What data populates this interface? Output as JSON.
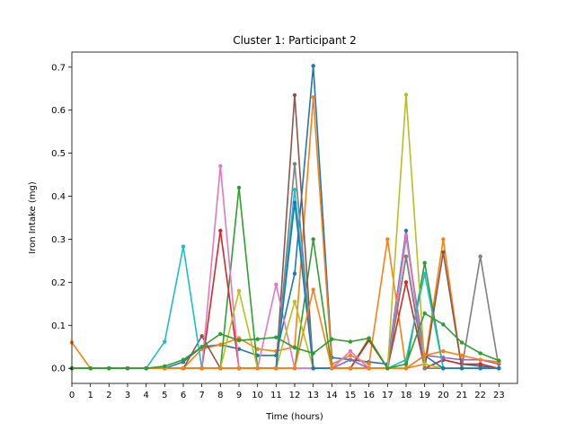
{
  "chart_data": {
    "type": "line",
    "title": "Cluster 1: Participant 2",
    "xlabel": "Time (hours)",
    "ylabel": "Iron Intake (mg)",
    "xlim": [
      0,
      24
    ],
    "ylim": [
      -0.035,
      0.735
    ],
    "x_ticks": [
      0,
      1,
      2,
      3,
      4,
      5,
      6,
      7,
      8,
      9,
      10,
      11,
      12,
      13,
      14,
      15,
      16,
      17,
      18,
      19,
      20,
      21,
      22,
      23
    ],
    "x_tick_labels": [
      "0",
      "1",
      "2",
      "3",
      "4",
      "5",
      "6",
      "7",
      "8",
      "9",
      "10",
      "11",
      "12",
      "13",
      "14",
      "15",
      "16",
      "17",
      "18",
      "19",
      "20",
      "21",
      "22",
      "23"
    ],
    "y_ticks": [
      0.0,
      0.1,
      0.2,
      0.3,
      0.4,
      0.5,
      0.6,
      0.7
    ],
    "y_tick_labels": [
      "0.0",
      "0.1",
      "0.2",
      "0.3",
      "0.4",
      "0.5",
      "0.6",
      "0.7"
    ],
    "grid": false,
    "legend": false,
    "x": [
      0,
      1,
      2,
      3,
      4,
      5,
      6,
      7,
      8,
      9,
      10,
      11,
      12,
      13,
      14,
      15,
      16,
      17,
      18,
      19,
      20,
      21,
      22,
      23
    ],
    "series": [
      {
        "color": "#1f77b4",
        "values": [
          0,
          0,
          0,
          0,
          0,
          0,
          0.015,
          0.05,
          0.055,
          0.045,
          0.03,
          0.03,
          0.22,
          0.703,
          0.025,
          0.02,
          0.015,
          0.01,
          0.32,
          0,
          0.02,
          0.01,
          0.005,
          0
        ]
      },
      {
        "color": "#ff7f0e",
        "values": [
          0.06,
          0,
          0,
          0,
          0,
          0,
          0,
          0.045,
          0.055,
          0.07,
          0.045,
          0.04,
          0.05,
          0.63,
          0.01,
          0.03,
          0.01,
          0.3,
          0,
          0.01,
          0.3,
          0,
          0,
          0
        ]
      },
      {
        "color": "#2ca02c",
        "values": [
          0,
          0,
          0,
          0,
          0,
          0,
          0,
          0,
          0,
          0.42,
          0,
          0,
          0,
          0.3,
          0,
          0,
          0.07,
          0,
          0,
          0.245,
          0,
          0,
          0,
          0
        ]
      },
      {
        "color": "#d62728",
        "values": [
          0,
          0,
          0,
          0,
          0,
          0,
          0,
          0,
          0.32,
          0,
          0,
          0,
          0,
          0,
          0,
          0,
          0.065,
          0,
          0.2,
          0,
          0.02,
          0.01,
          0.01,
          0
        ]
      },
      {
        "color": "#9467bd",
        "values": [
          0,
          0,
          0,
          0,
          0,
          0,
          0,
          0,
          0,
          0,
          0,
          0,
          0,
          0,
          0,
          0.02,
          0,
          0,
          0.305,
          0.03,
          0.025,
          0.02,
          0.02,
          0.01
        ]
      },
      {
        "color": "#8c564b",
        "values": [
          0,
          0,
          0,
          0,
          0,
          0,
          0,
          0.075,
          0,
          0,
          0,
          0,
          0.635,
          0,
          0,
          0,
          0,
          0,
          0.26,
          0,
          0.27,
          0,
          0,
          0
        ]
      },
      {
        "color": "#e377c2",
        "values": [
          0,
          0,
          0,
          0,
          0,
          0,
          0,
          0,
          0.47,
          0,
          0,
          0.195,
          0,
          0,
          0,
          0.04,
          0,
          0,
          0.31,
          0,
          0,
          0,
          0,
          0
        ]
      },
      {
        "color": "#7f7f7f",
        "values": [
          0,
          0,
          0,
          0,
          0,
          0,
          0,
          0,
          0,
          0,
          0,
          0,
          0.475,
          0,
          0,
          0,
          0,
          0,
          0.26,
          0,
          0,
          0,
          0.26,
          0
        ]
      },
      {
        "color": "#bcbd22",
        "values": [
          0,
          0,
          0,
          0,
          0,
          0,
          0,
          0,
          0,
          0.18,
          0,
          0,
          0.155,
          0,
          0,
          0,
          0,
          0,
          0.636,
          0.01,
          0,
          0,
          0,
          0
        ]
      },
      {
        "color": "#17becf",
        "values": [
          0,
          0,
          0,
          0,
          0,
          0.062,
          0.283,
          0,
          0,
          0,
          0,
          0,
          0.415,
          0,
          0,
          0,
          0,
          0,
          0.02,
          0.22,
          0,
          0,
          0,
          0
        ]
      },
      {
        "color": "#1f77b4",
        "values": [
          0,
          0,
          0,
          0,
          0,
          0,
          0,
          0,
          0,
          0,
          0,
          0,
          0.385,
          0,
          0,
          0,
          0,
          0,
          0,
          0.03,
          0,
          0,
          0,
          0
        ]
      },
      {
        "color": "#ff7f0e",
        "values": [
          0,
          0,
          0,
          0,
          0,
          0,
          0,
          0,
          0,
          0,
          0,
          0,
          0,
          0.183,
          0,
          0,
          0,
          0,
          0,
          0.03,
          0.04,
          0.03,
          0.02,
          0.015
        ]
      },
      {
        "color": "#2ca02c",
        "values": [
          0,
          0,
          0,
          0,
          0,
          0.005,
          0.02,
          0.05,
          0.08,
          0.065,
          0.068,
          0.072,
          0.048,
          0.035,
          0.068,
          0.062,
          0.07,
          0,
          0.01,
          0.128,
          0.102,
          0.06,
          0.035,
          0.018
        ]
      }
    ]
  }
}
